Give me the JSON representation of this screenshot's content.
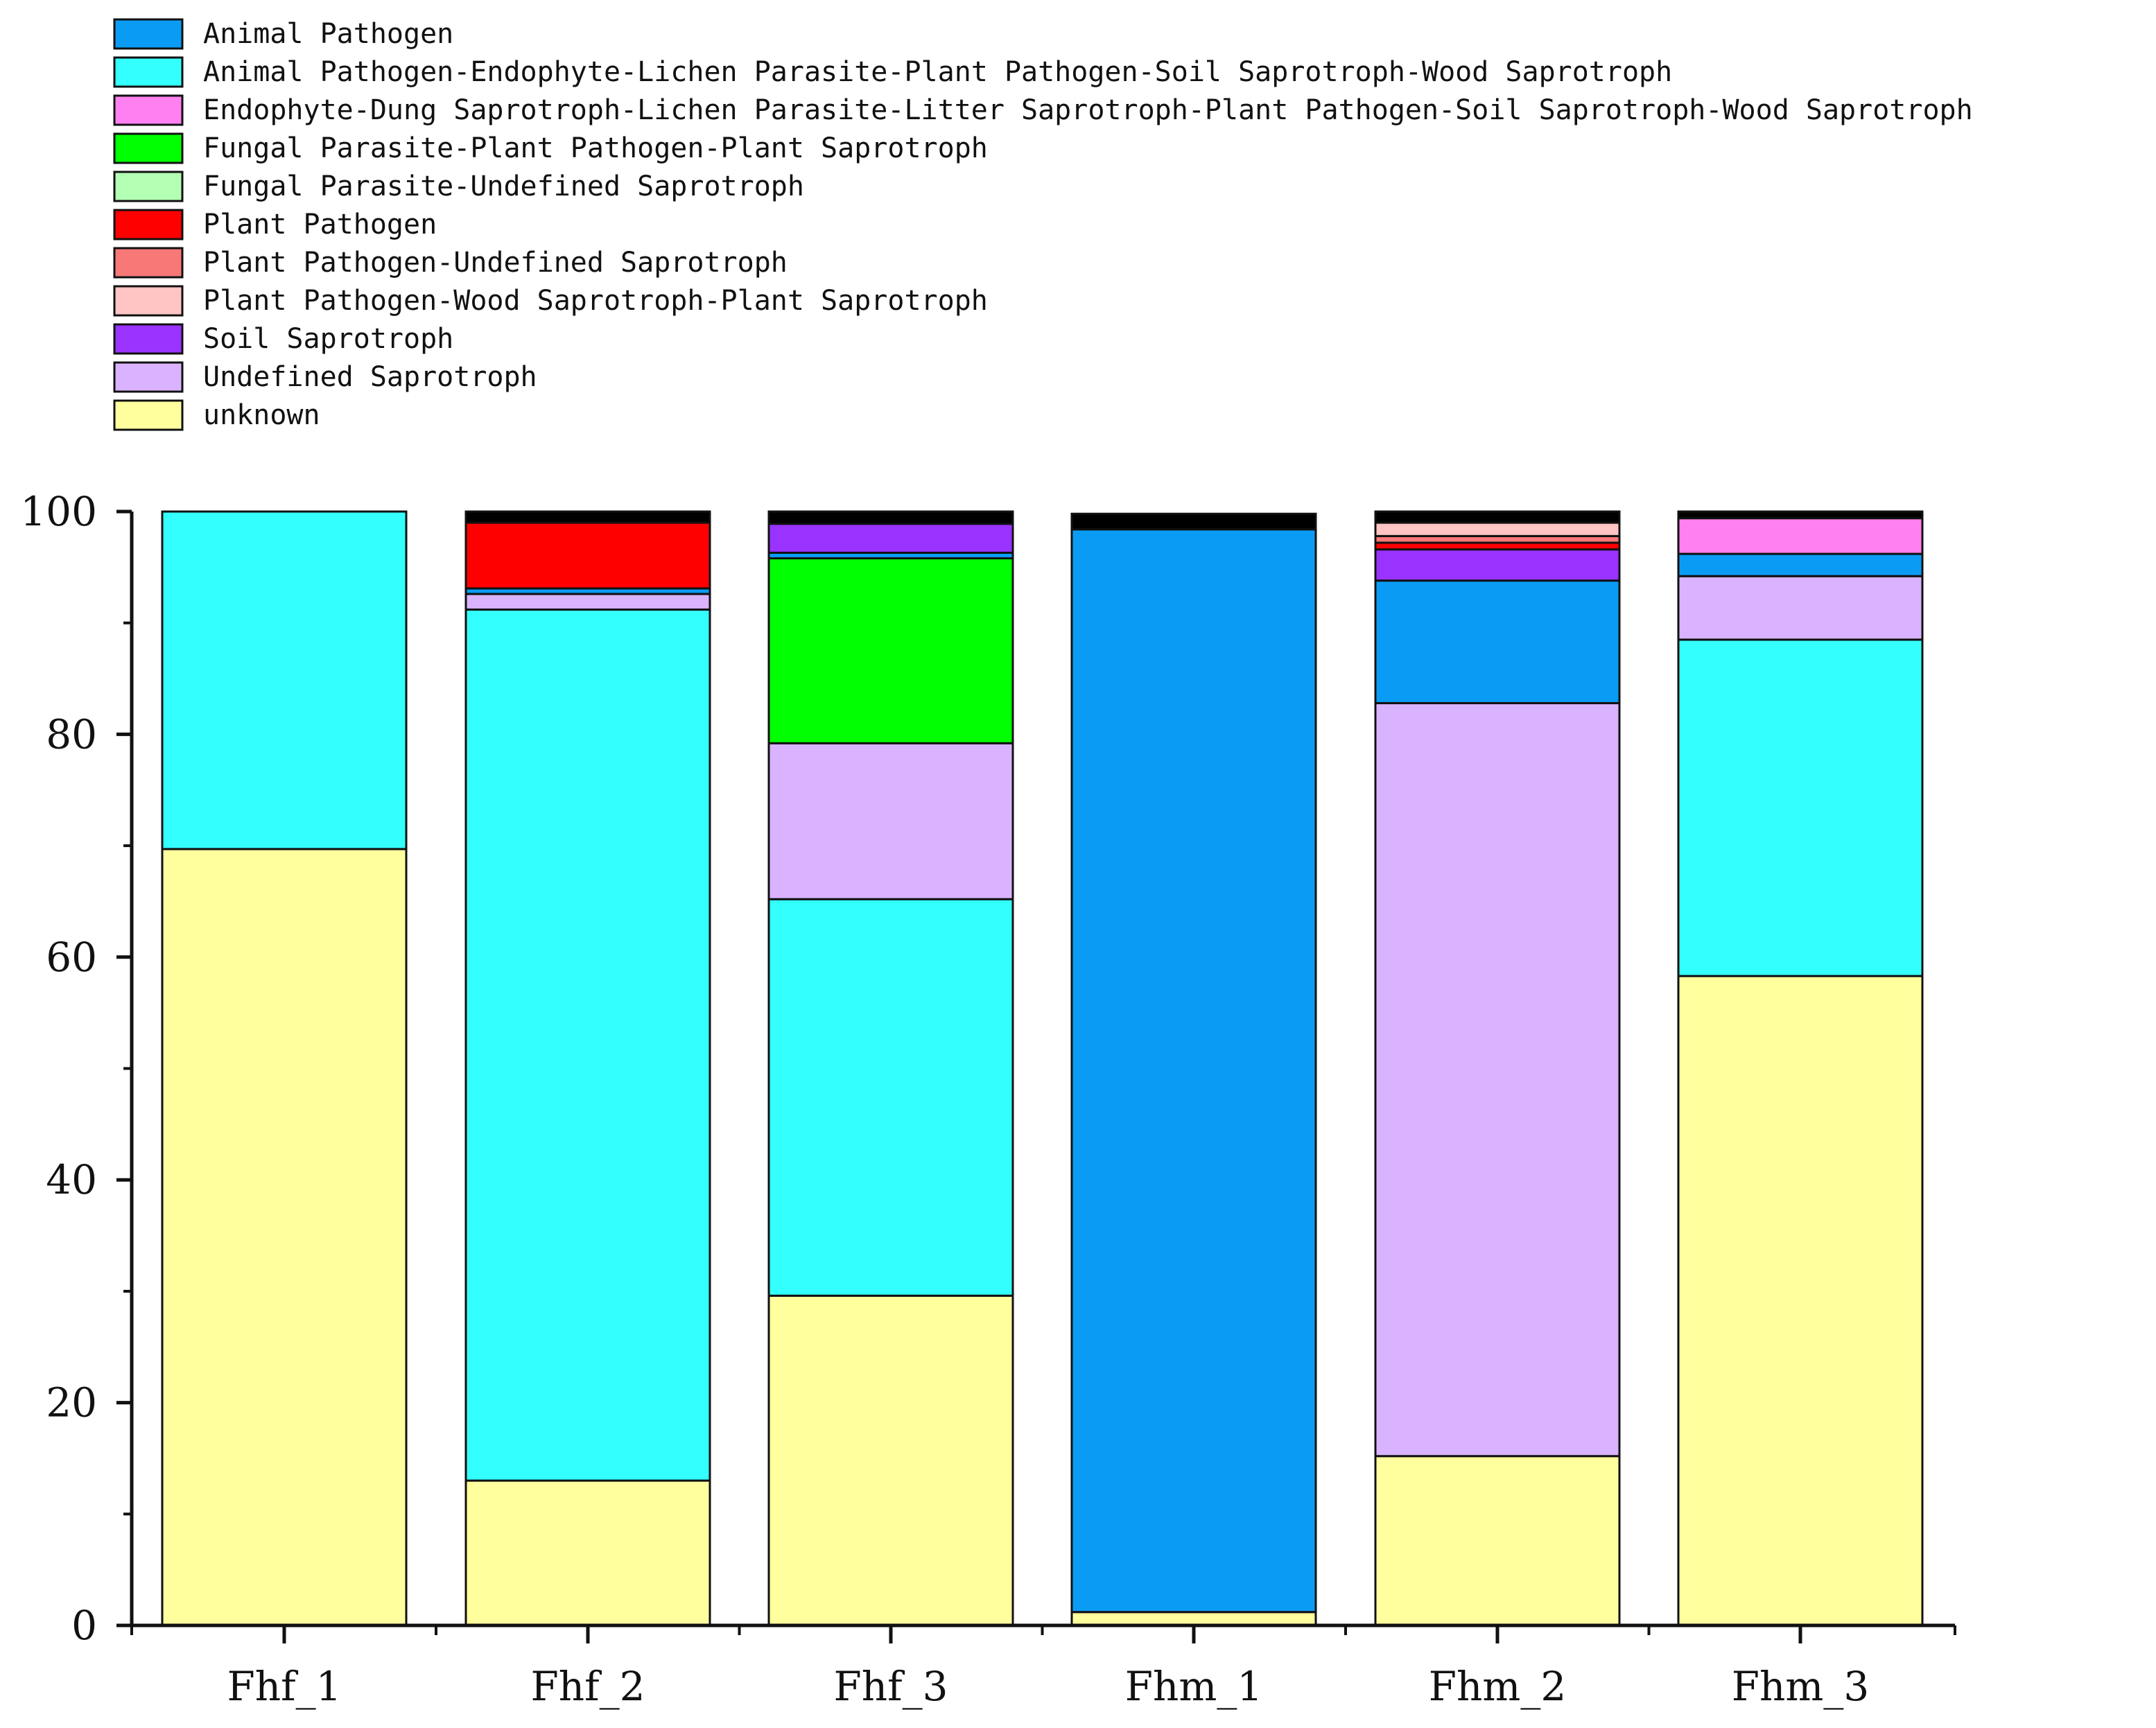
{
  "chart_data": {
    "type": "bar",
    "stacked": true,
    "title": "",
    "xlabel": "",
    "ylabel": "",
    "ylim": [
      0,
      100
    ],
    "yticks": [
      "0",
      "20",
      "40",
      "60",
      "80",
      "100"
    ],
    "legend_position": "top-left",
    "categories": [
      "Fhf_1",
      "Fhf_2",
      "Fhf_3",
      "Fhm_1",
      "Fhm_2",
      "Fhm_3"
    ],
    "series": [
      {
        "name": "Animal Pathogen",
        "color": "#0a9cf5",
        "values": [
          0,
          0.5,
          0.5,
          97.2,
          11.0,
          2.0
        ]
      },
      {
        "name": "Animal Pathogen-Endophyte-Lichen Parasite-Plant Pathogen-Soil Saprotroph-Wood Saprotroph",
        "color": "#33ffff",
        "values": [
          30.3,
          78.2,
          35.6,
          0,
          0,
          30.2
        ]
      },
      {
        "name": "Endophyte-Dung Saprotroph-Lichen Parasite-Litter Saprotroph-Plant Pathogen-Soil Saprotroph-Wood Saprotroph",
        "color": "#ff80f0",
        "values": [
          0,
          0,
          0,
          0,
          0,
          3.2
        ]
      },
      {
        "name": "Fungal Parasite-Plant Pathogen-Plant Saprotroph",
        "color": "#00ff00",
        "values": [
          0,
          0,
          16.6,
          0,
          0,
          0
        ]
      },
      {
        "name": "Fungal Parasite-Undefined Saprotroph",
        "color": "#b3ffb3",
        "values": [
          0,
          0,
          0,
          0,
          0,
          0
        ]
      },
      {
        "name": "Plant Pathogen",
        "color": "#ff0000",
        "values": [
          0,
          5.9,
          0,
          0,
          0.6,
          0
        ]
      },
      {
        "name": "Plant Pathogen-Undefined Saprotroph",
        "color": "#f87878",
        "values": [
          0,
          0,
          0,
          0,
          0.6,
          0
        ]
      },
      {
        "name": "Plant Pathogen-Wood Saprotroph-Plant Saprotroph",
        "color": "#ffc4c4",
        "values": [
          0,
          0,
          0,
          0,
          1.2,
          0
        ]
      },
      {
        "name": "Soil Saprotroph",
        "color": "#9a33ff",
        "values": [
          0,
          0,
          2.6,
          0,
          2.8,
          0
        ]
      },
      {
        "name": "Undefined Saprotroph",
        "color": "#d9b3ff",
        "values": [
          0,
          1.4,
          14.0,
          0,
          67.6,
          5.7
        ]
      },
      {
        "name": "unknown",
        "color": "#ffff9e",
        "values": [
          69.7,
          13.0,
          29.6,
          1.2,
          15.2,
          58.3
        ]
      },
      {
        "name": "",
        "color": "#000000",
        "values": [
          0,
          1.0,
          1.1,
          1.4,
          1.0,
          0.6
        ]
      }
    ],
    "stack_order_bottom_to_top": [
      "unknown",
      "Animal Pathogen-Endophyte-Lichen Parasite-Plant Pathogen-Soil Saprotroph-Wood Saprotroph",
      "Undefined Saprotroph",
      "Fungal Parasite-Plant Pathogen-Plant Saprotroph",
      "Animal Pathogen",
      "Soil Saprotroph",
      "Plant Pathogen",
      "Plant Pathogen-Undefined Saprotroph",
      "Plant Pathogen-Wood Saprotroph-Plant Saprotroph",
      "Endophyte-Dung Saprotroph-Lichen Parasite-Litter Saprotroph-Plant Pathogen-Soil Saprotroph-Wood Saprotroph",
      "Fungal Parasite-Undefined Saprotroph",
      ""
    ]
  }
}
